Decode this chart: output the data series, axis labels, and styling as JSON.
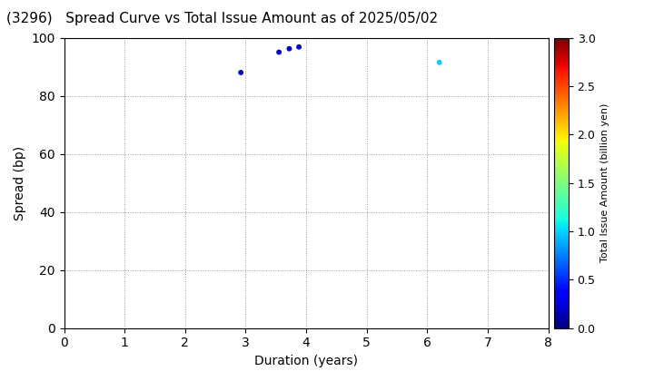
{
  "title": "(3296)   Spread Curve vs Total Issue Amount as of 2025/05/02",
  "xlabel": "Duration (years)",
  "ylabel": "Spread (bp)",
  "colorbar_label": "Total Issue Amount (billion yen)",
  "xlim": [
    0,
    8
  ],
  "ylim": [
    0,
    100
  ],
  "xticks": [
    0,
    1,
    2,
    3,
    4,
    5,
    6,
    7,
    8
  ],
  "yticks": [
    0,
    20,
    40,
    60,
    80,
    100
  ],
  "colorbar_min": 0.0,
  "colorbar_max": 3.0,
  "colorbar_ticks": [
    0.0,
    0.5,
    1.0,
    1.5,
    2.0,
    2.5,
    3.0
  ],
  "points": [
    {
      "duration": 2.92,
      "spread": 88.0,
      "amount": 0.3
    },
    {
      "duration": 3.55,
      "spread": 95.0,
      "amount": 0.3
    },
    {
      "duration": 3.72,
      "spread": 96.2,
      "amount": 0.3
    },
    {
      "duration": 3.88,
      "spread": 96.8,
      "amount": 0.3
    },
    {
      "duration": 6.2,
      "spread": 91.5,
      "amount": 1.0
    }
  ],
  "marker_size": 18,
  "background_color": "#ffffff",
  "grid_color": "#999999",
  "grid_linestyle": ":"
}
